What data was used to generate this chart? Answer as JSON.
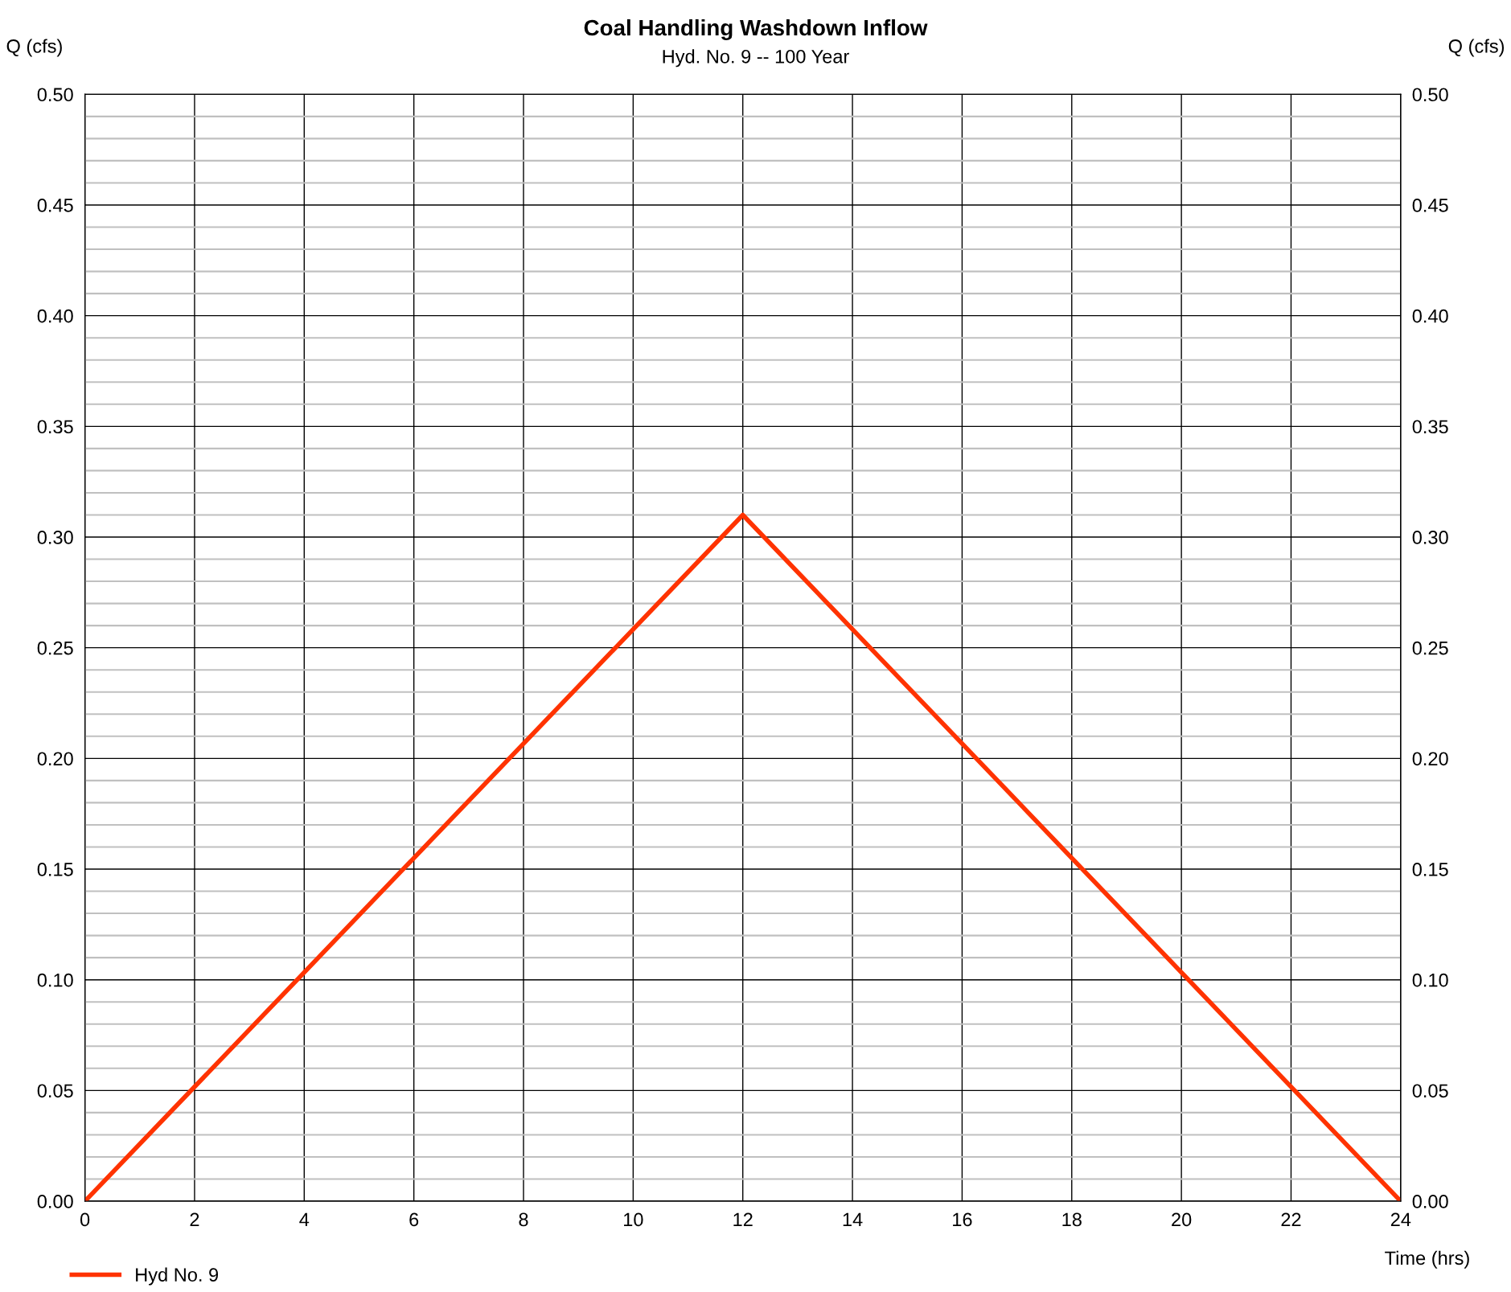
{
  "chart_data": {
    "type": "line",
    "title": "Coal Handling Washdown Inflow",
    "subtitle": "Hyd. No. 9 -- 100 Year",
    "xlabel": "Time (hrs)",
    "ylabel": "Q (cfs)",
    "y2label": "Q (cfs)",
    "x": [
      0,
      12,
      24
    ],
    "series": [
      {
        "name": "Hyd No. 9",
        "color": "#ff3300",
        "values": [
          0,
          0.31,
          0
        ]
      }
    ],
    "xlim": [
      0,
      24
    ],
    "xticks": [
      0,
      2,
      4,
      6,
      8,
      10,
      12,
      14,
      16,
      18,
      20,
      22,
      24
    ],
    "ylim": [
      0,
      0.5
    ],
    "yticks": [
      {
        "value": 0,
        "label": "0.00"
      },
      {
        "value": 0.05,
        "label": "0.05"
      },
      {
        "value": 0.1,
        "label": "0.10"
      },
      {
        "value": 0.15,
        "label": "0.15"
      },
      {
        "value": 0.2,
        "label": "0.20"
      },
      {
        "value": 0.25,
        "label": "0.25"
      },
      {
        "value": 0.3,
        "label": "0.30"
      },
      {
        "value": 0.35,
        "label": "0.35"
      },
      {
        "value": 0.4,
        "label": "0.40"
      },
      {
        "value": 0.45,
        "label": "0.45"
      },
      {
        "value": 0.5,
        "label": "0.50"
      }
    ],
    "y2lim": [
      0,
      0.5
    ],
    "y2ticks": [
      {
        "value": 0,
        "label": "0.00"
      },
      {
        "value": 0.05,
        "label": "0.05"
      },
      {
        "value": 0.1,
        "label": "0.10"
      },
      {
        "value": 0.15,
        "label": "0.15"
      },
      {
        "value": 0.2,
        "label": "0.20"
      },
      {
        "value": 0.25,
        "label": "0.25"
      },
      {
        "value": 0.3,
        "label": "0.30"
      },
      {
        "value": 0.35,
        "label": "0.35"
      },
      {
        "value": 0.4,
        "label": "0.40"
      },
      {
        "value": 0.45,
        "label": "0.45"
      },
      {
        "value": 0.5,
        "label": "0.50"
      }
    ],
    "grid": true,
    "legend": "bottom left",
    "line_style": "solid"
  }
}
